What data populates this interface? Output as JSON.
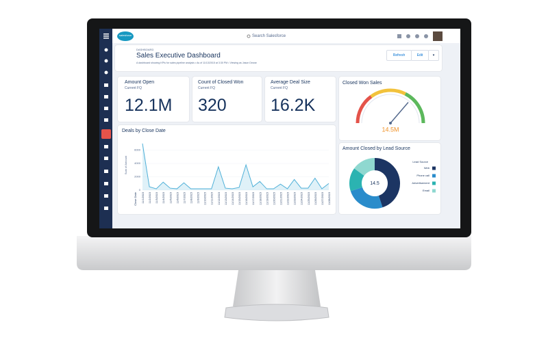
{
  "header": {
    "logo": "salesforce",
    "search": "Search Salesforce"
  },
  "dashboard": {
    "label": "DASHBOARD",
    "title": "Sales Executive Dashboard",
    "subtitle": "A dashboard showing KPIs for sales pipeline analysis • As of 11/13/2015 at 3:30 PM • Viewing as Jason Dewar",
    "buttons": [
      "Refresh",
      "Edit"
    ]
  },
  "kpis": [
    {
      "title": "Amount Open",
      "period": "Current FQ",
      "value": "12.1M"
    },
    {
      "title": "Count of Closed Won",
      "period": "Current FQ",
      "value": "320"
    },
    {
      "title": "Average Deal Size",
      "period": "Current FQ",
      "value": "16.2K"
    }
  ],
  "gauge": {
    "type": "gauge",
    "title": "Closed Won Sales",
    "value": 14.5,
    "value_label": "14.5M",
    "range": [
      0,
      20
    ],
    "bands": [
      {
        "to": 6,
        "color": "#e4534a"
      },
      {
        "to": 13,
        "color": "#f2c23c"
      },
      {
        "to": 20,
        "color": "#5cb85c"
      }
    ]
  },
  "deals_chart": {
    "type": "line",
    "title": "Deals by Close Date",
    "ylabel": "Sum of Amount",
    "xlabel": "Close Date",
    "categories": [
      "11/1/2015",
      "11/2/2015",
      "11/3/2015",
      "11/4/2015",
      "11/5/2015",
      "11/6/2015",
      "11/7/2015",
      "11/8/2015",
      "11/9/2015",
      "11/10/2015",
      "11/11/2015",
      "11/12/2015",
      "11/13/2015",
      "11/14/2015",
      "11/15/2015",
      "11/16/2015",
      "11/17/2015",
      "11/18/2015",
      "11/19/2015",
      "11/20/2015",
      "11/21/2015",
      "11/22/2015",
      "11/23/2015",
      "11/24/2015",
      "11/25/2015",
      "11/26/2015",
      "11/27/2015",
      "11/28/2015"
    ],
    "values": [
      7000,
      500,
      200,
      1200,
      300,
      200,
      1100,
      200,
      200,
      200,
      200,
      3500,
      300,
      200,
      400,
      3800,
      500,
      1300,
      200,
      200,
      900,
      200,
      1600,
      300,
      300,
      1800,
      200,
      1000
    ],
    "color": "#4fb0d8",
    "ylim": [
      0,
      7500
    ],
    "yticks": [
      0,
      2000,
      4000,
      6000
    ]
  },
  "lead_source": {
    "type": "donut",
    "title": "Amount Closed by Lead Source",
    "center_label": "14.5",
    "legend_title": "Lead Source",
    "series": [
      {
        "name": "Web",
        "color": "#1c3563",
        "value": 45
      },
      {
        "name": "Phone call",
        "color": "#2a8ccb",
        "value": 25
      },
      {
        "name": "Advertisement",
        "color": "#2bb3b1",
        "value": 15
      },
      {
        "name": "Email",
        "color": "#8fd8d0",
        "value": 15
      }
    ]
  }
}
